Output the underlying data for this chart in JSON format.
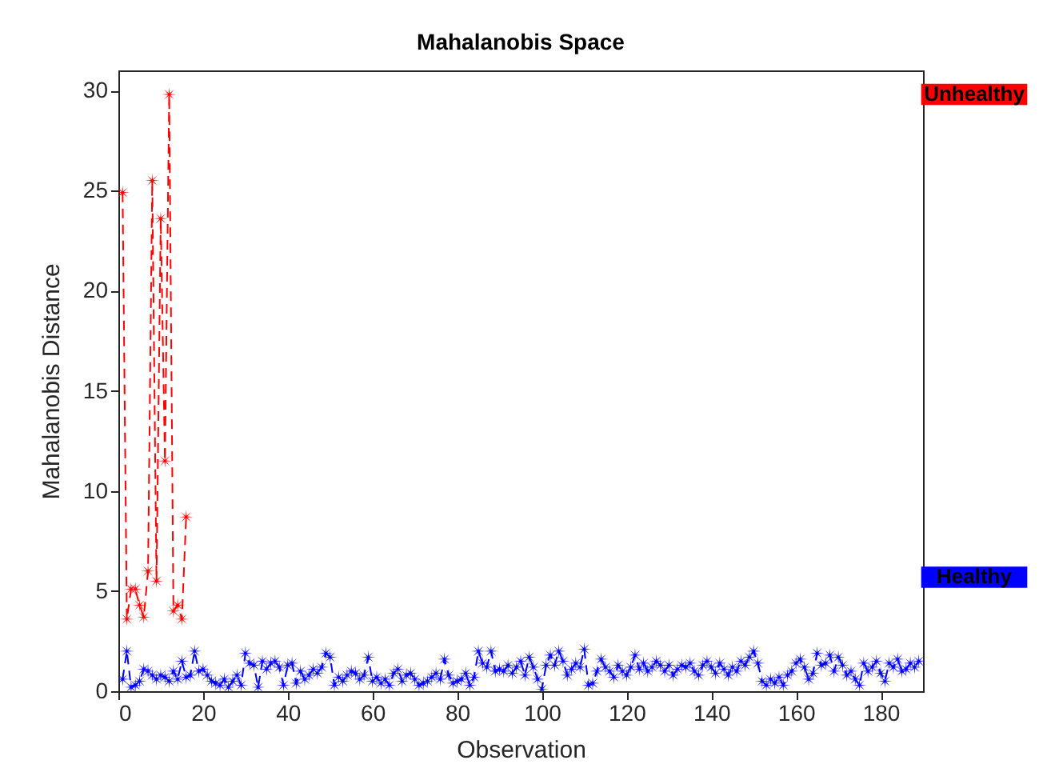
{
  "chart_data": {
    "type": "line",
    "title": "Mahalanobis Space",
    "xlabel": "Observation",
    "ylabel": "Mahalanobis Distance",
    "xlim": [
      0,
      190
    ],
    "xticks": [
      0,
      20,
      40,
      60,
      80,
      100,
      120,
      140,
      160,
      180
    ],
    "ylim": [
      0,
      31
    ],
    "yticks": [
      0,
      5,
      10,
      15,
      20,
      25,
      30
    ],
    "grid": false,
    "marker": "star",
    "line_style": "dashed",
    "series": [
      {
        "name": "Healthy",
        "color": "#0000ff",
        "x": [
          1,
          2,
          3,
          4,
          5,
          6,
          7,
          8,
          9,
          10,
          11,
          12,
          13,
          14,
          15,
          16,
          17,
          18,
          19,
          20,
          21,
          22,
          23,
          24,
          25,
          26,
          27,
          28,
          29,
          30,
          31,
          32,
          33,
          34,
          35,
          36,
          37,
          38,
          39,
          40,
          41,
          42,
          43,
          44,
          45,
          46,
          47,
          48,
          49,
          50,
          51,
          52,
          53,
          54,
          55,
          56,
          57,
          58,
          59,
          60,
          61,
          62,
          63,
          64,
          65,
          66,
          67,
          68,
          69,
          70,
          71,
          72,
          73,
          74,
          75,
          76,
          77,
          78,
          79,
          80,
          81,
          82,
          83,
          84,
          85,
          86,
          87,
          88,
          89,
          90,
          91,
          92,
          93,
          94,
          95,
          96,
          97,
          98,
          99,
          100,
          101,
          102,
          103,
          104,
          105,
          106,
          107,
          108,
          109,
          110,
          111,
          112,
          113,
          114,
          115,
          116,
          117,
          118,
          119,
          120,
          121,
          122,
          123,
          124,
          125,
          126,
          127,
          128,
          129,
          130,
          131,
          132,
          133,
          134,
          135,
          136,
          137,
          138,
          139,
          140,
          141,
          142,
          143,
          144,
          145,
          146,
          147,
          148,
          149,
          150,
          151,
          152,
          153,
          154,
          155,
          156,
          157,
          158,
          159,
          160,
          161,
          162,
          163,
          164,
          165,
          166,
          167,
          168,
          169,
          170,
          171,
          172,
          173,
          174,
          175,
          176,
          177,
          178,
          179,
          180,
          181,
          182,
          183,
          184,
          185,
          186,
          187,
          188,
          189
        ],
        "values": [
          0.6,
          2.0,
          0.2,
          0.3,
          0.5,
          1.1,
          1.0,
          0.8,
          0.6,
          0.8,
          0.7,
          0.5,
          1.0,
          0.6,
          1.5,
          0.7,
          0.8,
          2.0,
          1.0,
          1.1,
          0.8,
          0.5,
          0.4,
          0.3,
          0.6,
          0.2,
          0.5,
          0.8,
          0.3,
          1.9,
          1.4,
          1.3,
          0.2,
          1.5,
          1.1,
          1.4,
          1.5,
          1.2,
          0.3,
          1.3,
          1.4,
          0.4,
          1.0,
          0.6,
          0.8,
          1.1,
          0.9,
          1.2,
          1.9,
          1.7,
          0.3,
          0.7,
          0.5,
          0.8,
          1.0,
          0.9,
          0.6,
          0.8,
          1.7,
          0.5,
          0.7,
          0.4,
          0.6,
          0.3,
          0.9,
          1.1,
          0.5,
          0.8,
          0.9,
          0.6,
          0.3,
          0.4,
          0.5,
          0.7,
          0.9,
          0.6,
          1.6,
          0.8,
          0.4,
          0.5,
          0.6,
          0.9,
          0.3,
          0.7,
          2.0,
          1.4,
          1.2,
          2.0,
          1.0,
          1.1,
          1.0,
          1.3,
          0.9,
          1.2,
          1.5,
          0.8,
          1.7,
          1.2,
          0.6,
          0.1,
          1.3,
          1.8,
          1.3,
          2.0,
          1.5,
          0.8,
          1.1,
          1.4,
          1.2,
          2.1,
          0.3,
          0.4,
          1.0,
          1.6,
          1.2,
          1.0,
          0.7,
          1.3,
          1.0,
          0.8,
          1.2,
          1.8,
          1.1,
          1.4,
          1.0,
          1.2,
          1.5,
          1.3,
          1.0,
          1.3,
          0.8,
          1.1,
          1.3,
          1.2,
          1.4,
          1.0,
          0.8,
          1.3,
          1.5,
          1.2,
          0.9,
          1.4,
          1.1,
          0.8,
          1.2,
          1.0,
          1.5,
          1.3,
          1.7,
          2.0,
          1.4,
          0.5,
          0.3,
          0.6,
          0.4,
          0.7,
          0.3,
          0.8,
          1.0,
          1.4,
          1.6,
          1.2,
          0.6,
          0.9,
          1.9,
          1.3,
          1.4,
          1.8,
          1.0,
          1.7,
          1.3,
          0.8,
          1.0,
          0.6,
          0.3,
          1.4,
          1.0,
          1.2,
          1.5,
          0.9,
          0.5,
          1.4,
          1.2,
          1.6,
          1.0,
          1.1,
          1.4,
          1.2,
          1.5
        ]
      },
      {
        "name": "Unhealthy",
        "color": "#ff0000",
        "x": [
          1,
          2,
          3,
          4,
          5,
          6,
          7,
          8,
          9,
          10,
          11,
          12,
          13,
          14,
          15,
          16
        ],
        "values": [
          24.9,
          3.6,
          5.1,
          5.1,
          4.3,
          3.7,
          6.0,
          25.5,
          5.5,
          23.6,
          11.5,
          29.8,
          4.0,
          4.3,
          3.6,
          8.7
        ]
      }
    ]
  }
}
